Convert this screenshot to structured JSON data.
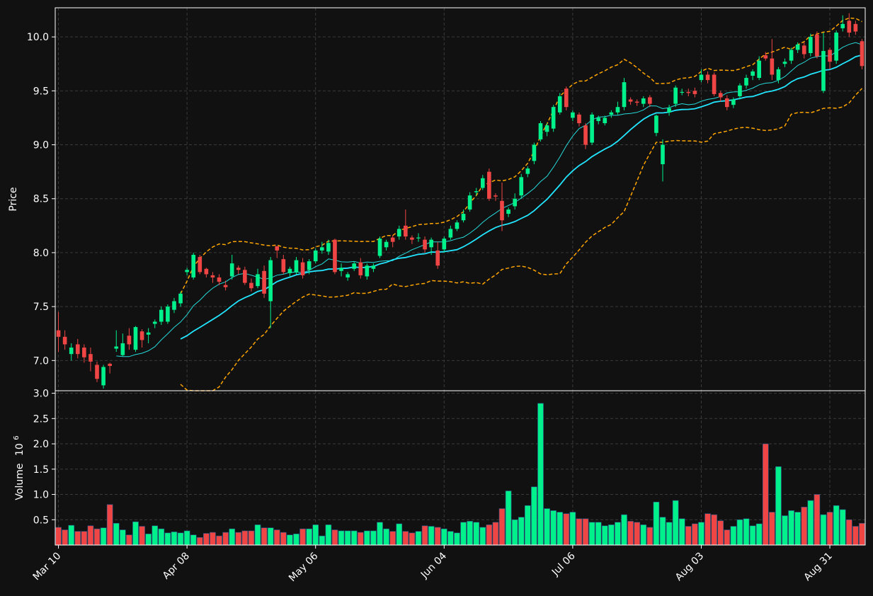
{
  "colors": {
    "background": "#111111",
    "up": "#00f08c",
    "down": "#f04545",
    "ma_fast": "#26d9d9",
    "ma_slow": "#22e5ff",
    "bollinger": "#ffa500",
    "axes": "#ffffff",
    "grid": "#3a3a3a"
  },
  "chart_data": {
    "type": "candlestick",
    "price_panel": {
      "ylabel": "Price",
      "ylim": [
        6.72,
        10.27
      ],
      "yticks": [
        "7.0",
        "7.5",
        "8.0",
        "8.5",
        "9.0",
        "9.5",
        "10.0"
      ],
      "grid": true
    },
    "volume_panel": {
      "ylabel": "Volume",
      "multiplier": "10",
      "exponent": "6",
      "ylim": [
        0,
        3.05
      ],
      "yticks": [
        "0.5",
        "1.0",
        "1.5",
        "2.0",
        "2.5",
        "3.0"
      ],
      "grid": true
    },
    "x_ticks": [
      {
        "label": "Mar 10",
        "index": 0
      },
      {
        "label": "Apr 08",
        "index": 20
      },
      {
        "label": "May 06",
        "index": 40
      },
      {
        "label": "Jun 04",
        "index": 60
      },
      {
        "label": "Jul 06",
        "index": 80
      },
      {
        "label": "Aug 03",
        "index": 100
      },
      {
        "label": "Aug 31",
        "index": 120
      }
    ],
    "candles": [
      [
        7.28,
        7.22,
        7.45,
        7.08,
        0.35
      ],
      [
        7.22,
        7.15,
        7.28,
        7.1,
        0.3
      ],
      [
        7.06,
        7.12,
        7.16,
        7.0,
        0.39
      ],
      [
        7.15,
        7.06,
        7.2,
        7.02,
        0.27
      ],
      [
        7.12,
        7.03,
        7.15,
        6.98,
        0.27
      ],
      [
        7.06,
        6.99,
        7.12,
        6.9,
        0.38
      ],
      [
        6.96,
        6.83,
        6.99,
        6.8,
        0.32
      ],
      [
        6.77,
        6.94,
        6.96,
        6.74,
        0.34
      ],
      [
        6.97,
        6.95,
        6.98,
        6.88,
        0.8
      ],
      [
        7.11,
        7.13,
        7.28,
        7.08,
        0.43
      ],
      [
        7.05,
        7.16,
        7.25,
        7.04,
        0.3
      ],
      [
        7.23,
        7.15,
        7.3,
        7.1,
        0.2
      ],
      [
        7.1,
        7.31,
        7.32,
        7.08,
        0.46
      ],
      [
        7.27,
        7.19,
        7.29,
        7.12,
        0.37
      ],
      [
        7.24,
        7.26,
        7.3,
        7.16,
        0.22
      ],
      [
        7.34,
        7.36,
        7.38,
        7.3,
        0.38
      ],
      [
        7.36,
        7.47,
        7.5,
        7.33,
        0.32
      ],
      [
        7.36,
        7.5,
        7.52,
        7.34,
        0.24
      ],
      [
        7.47,
        7.55,
        7.58,
        7.44,
        0.26
      ],
      [
        7.53,
        7.62,
        7.64,
        7.5,
        0.24
      ],
      [
        7.82,
        7.84,
        7.86,
        7.79,
        0.28
      ],
      [
        7.77,
        7.98,
        8.0,
        7.75,
        0.2
      ],
      [
        7.96,
        7.82,
        7.98,
        7.8,
        0.15
      ],
      [
        7.85,
        7.8,
        7.86,
        7.77,
        0.23
      ],
      [
        7.79,
        7.77,
        7.82,
        7.72,
        0.25
      ],
      [
        7.77,
        7.73,
        7.8,
        7.7,
        0.18
      ],
      [
        7.7,
        7.68,
        7.74,
        7.65,
        0.25
      ],
      [
        7.78,
        7.9,
        7.98,
        7.75,
        0.32
      ],
      [
        7.86,
        7.84,
        7.88,
        7.8,
        0.25
      ],
      [
        7.84,
        7.72,
        7.87,
        7.7,
        0.28
      ],
      [
        7.72,
        7.67,
        7.76,
        7.64,
        0.28
      ],
      [
        7.69,
        7.8,
        7.85,
        7.67,
        0.4
      ],
      [
        7.83,
        7.62,
        7.88,
        7.58,
        0.34
      ],
      [
        7.55,
        7.93,
        7.96,
        7.3,
        0.34
      ],
      [
        8.06,
        8.02,
        8.06,
        7.95,
        0.3
      ],
      [
        7.94,
        7.82,
        7.98,
        7.8,
        0.25
      ],
      [
        7.81,
        7.85,
        7.87,
        7.78,
        0.2
      ],
      [
        7.82,
        7.93,
        7.96,
        7.8,
        0.22
      ],
      [
        7.91,
        7.79,
        7.95,
        7.76,
        0.32
      ],
      [
        7.84,
        7.92,
        7.94,
        7.8,
        0.32
      ],
      [
        7.92,
        8.02,
        8.04,
        7.9,
        0.4
      ],
      [
        8.02,
        8.05,
        8.1,
        7.99,
        0.18
      ],
      [
        8.01,
        8.09,
        8.12,
        7.98,
        0.4
      ],
      [
        8.12,
        7.82,
        8.13,
        7.8,
        0.3
      ],
      [
        7.83,
        7.86,
        7.9,
        7.78,
        0.28
      ],
      [
        7.77,
        7.8,
        7.82,
        7.74,
        0.28
      ],
      [
        7.85,
        7.9,
        7.92,
        7.83,
        0.28
      ],
      [
        7.91,
        7.79,
        7.95,
        7.76,
        0.25
      ],
      [
        7.78,
        7.88,
        7.9,
        7.75,
        0.28
      ],
      [
        7.85,
        7.88,
        7.9,
        7.82,
        0.28
      ],
      [
        7.97,
        8.13,
        8.15,
        7.95,
        0.45
      ],
      [
        8.05,
        8.1,
        8.12,
        8.02,
        0.32
      ],
      [
        8.14,
        8.1,
        8.16,
        8.05,
        0.27
      ],
      [
        8.15,
        8.22,
        8.25,
        8.12,
        0.42
      ],
      [
        8.25,
        8.15,
        8.4,
        8.12,
        0.27
      ],
      [
        8.14,
        8.12,
        8.16,
        8.08,
        0.24
      ],
      [
        8.14,
        8.14,
        8.18,
        8.1,
        0.27
      ],
      [
        8.12,
        8.03,
        8.15,
        8.0,
        0.38
      ],
      [
        8.05,
        8.12,
        8.14,
        7.98,
        0.37
      ],
      [
        8.02,
        7.88,
        8.1,
        7.85,
        0.35
      ],
      [
        8.03,
        8.13,
        8.15,
        8.0,
        0.32
      ],
      [
        8.14,
        8.22,
        8.25,
        8.12,
        0.27
      ],
      [
        8.22,
        8.28,
        8.3,
        8.2,
        0.24
      ],
      [
        8.3,
        8.36,
        8.4,
        8.28,
        0.45
      ],
      [
        8.4,
        8.53,
        8.56,
        8.38,
        0.47
      ],
      [
        8.56,
        8.57,
        8.6,
        8.53,
        0.45
      ],
      [
        8.6,
        8.69,
        8.72,
        8.58,
        0.35
      ],
      [
        8.75,
        8.5,
        8.78,
        8.48,
        0.4
      ],
      [
        8.53,
        8.52,
        8.55,
        8.48,
        0.45
      ],
      [
        8.48,
        8.3,
        8.65,
        8.2,
        0.72
      ],
      [
        8.36,
        8.4,
        8.42,
        8.33,
        1.07
      ],
      [
        8.43,
        8.5,
        8.55,
        8.4,
        0.5
      ],
      [
        8.53,
        8.7,
        8.73,
        8.5,
        0.55
      ],
      [
        8.73,
        8.78,
        8.8,
        8.7,
        0.78
      ],
      [
        8.85,
        9.0,
        9.02,
        8.82,
        1.15
      ],
      [
        9.05,
        9.2,
        9.22,
        9.03,
        2.8
      ],
      [
        9.12,
        9.18,
        9.2,
        9.08,
        0.72
      ],
      [
        9.15,
        9.35,
        9.37,
        9.12,
        0.68
      ],
      [
        9.3,
        9.45,
        9.48,
        9.28,
        0.65
      ],
      [
        9.52,
        9.35,
        9.54,
        9.32,
        0.62
      ],
      [
        9.25,
        9.3,
        9.32,
        9.22,
        0.65
      ],
      [
        9.28,
        9.2,
        9.3,
        9.17,
        0.52
      ],
      [
        9.18,
        9.0,
        9.2,
        8.96,
        0.52
      ],
      [
        9.02,
        9.28,
        9.3,
        9.0,
        0.45
      ],
      [
        9.22,
        9.25,
        9.27,
        9.19,
        0.45
      ],
      [
        9.2,
        9.25,
        9.27,
        9.18,
        0.38
      ],
      [
        9.28,
        9.3,
        9.32,
        9.25,
        0.4
      ],
      [
        9.3,
        9.35,
        9.4,
        9.28,
        0.45
      ],
      [
        9.35,
        9.58,
        9.62,
        9.32,
        0.6
      ],
      [
        9.42,
        9.4,
        9.44,
        9.37,
        0.47
      ],
      [
        9.4,
        9.39,
        9.42,
        9.36,
        0.45
      ],
      [
        9.38,
        9.43,
        9.45,
        9.35,
        0.4
      ],
      [
        9.44,
        9.38,
        9.46,
        9.35,
        0.35
      ],
      [
        9.11,
        9.27,
        9.28,
        9.08,
        0.85
      ],
      [
        8.82,
        9.0,
        9.05,
        8.66,
        0.55
      ],
      [
        9.3,
        9.34,
        9.37,
        9.27,
        0.45
      ],
      [
        9.38,
        9.53,
        9.55,
        9.35,
        0.88
      ],
      [
        9.49,
        9.49,
        9.52,
        9.46,
        0.52
      ],
      [
        9.49,
        9.48,
        9.52,
        9.45,
        0.37
      ],
      [
        9.5,
        9.47,
        9.53,
        9.44,
        0.42
      ],
      [
        9.6,
        9.65,
        9.7,
        9.58,
        0.45
      ],
      [
        9.65,
        9.6,
        9.68,
        9.57,
        0.62
      ],
      [
        9.65,
        9.47,
        9.67,
        9.45,
        0.6
      ],
      [
        9.48,
        9.44,
        9.5,
        9.4,
        0.48
      ],
      [
        9.43,
        9.35,
        9.46,
        9.32,
        0.3
      ],
      [
        9.37,
        9.42,
        9.44,
        9.34,
        0.37
      ],
      [
        9.45,
        9.55,
        9.57,
        9.42,
        0.5
      ],
      [
        9.55,
        9.62,
        9.65,
        9.52,
        0.52
      ],
      [
        9.64,
        9.68,
        9.7,
        9.6,
        0.38
      ],
      [
        9.62,
        9.78,
        9.82,
        9.6,
        0.42
      ],
      [
        9.83,
        9.8,
        9.86,
        9.78,
        2.0
      ],
      [
        9.8,
        9.65,
        9.98,
        9.6,
        0.65
      ],
      [
        9.6,
        9.7,
        9.72,
        9.57,
        1.55
      ],
      [
        9.75,
        9.77,
        9.8,
        9.72,
        0.58
      ],
      [
        9.78,
        9.88,
        9.9,
        9.75,
        0.68
      ],
      [
        9.88,
        9.93,
        9.95,
        9.85,
        0.65
      ],
      [
        9.92,
        9.84,
        9.95,
        9.8,
        0.75
      ],
      [
        9.85,
        10.0,
        10.03,
        9.82,
        0.88
      ],
      [
        10.02,
        9.82,
        10.05,
        9.8,
        1.0
      ],
      [
        9.5,
        9.87,
        10.04,
        9.48,
        0.6
      ],
      [
        9.88,
        9.77,
        9.9,
        9.7,
        0.65
      ],
      [
        9.78,
        10.04,
        10.06,
        9.75,
        0.78
      ],
      [
        10.08,
        10.12,
        10.2,
        10.05,
        0.7
      ],
      [
        10.15,
        10.04,
        10.22,
        10.0,
        0.5
      ],
      [
        10.12,
        10.05,
        10.15,
        10.02,
        0.37
      ],
      [
        9.96,
        9.73,
        9.98,
        9.7,
        0.43
      ]
    ],
    "moving_averages": [
      {
        "window": 10,
        "color": "#26d9d9"
      },
      {
        "window": 20,
        "color": "#22e5ff"
      }
    ],
    "bollinger": {
      "window": 20,
      "std": 2,
      "color": "#ffa500"
    }
  }
}
